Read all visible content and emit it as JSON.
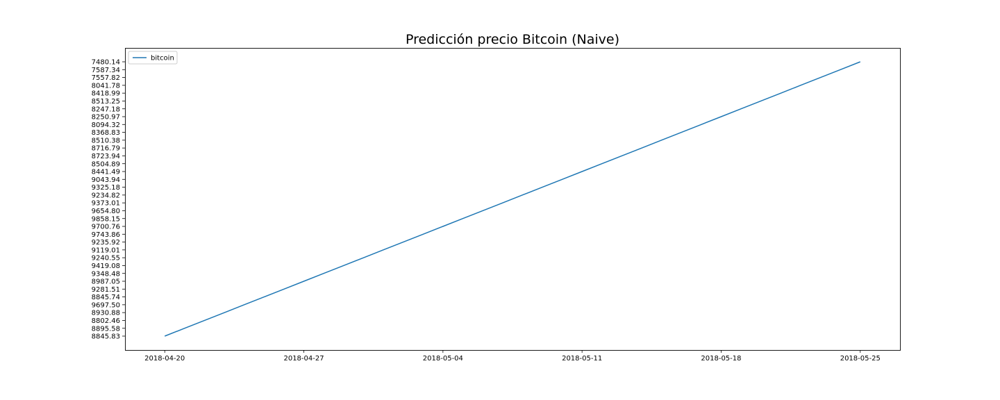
{
  "chart_data": {
    "type": "line",
    "title": "Predicción precio Bitcoin (Naive)",
    "xlabel": "",
    "ylabel": "",
    "grid": false,
    "legend_placement": "top-left",
    "x_ticks": [
      "2018-04-20",
      "2018-04-27",
      "2018-05-04",
      "2018-05-11",
      "2018-05-18",
      "2018-05-25"
    ],
    "xlim": [
      "2018-04-18",
      "2018-05-27"
    ],
    "y_categories": [
      "8845.83",
      "8895.58",
      "8802.46",
      "8930.88",
      "9697.50",
      "8845.74",
      "9281.51",
      "8987.05",
      "9348.48",
      "9419.08",
      "9240.55",
      "9119.01",
      "9235.92",
      "9743.86",
      "9700.76",
      "9858.15",
      "9654.80",
      "9373.01",
      "9234.82",
      "9325.18",
      "9043.94",
      "8441.49",
      "8504.89",
      "8723.94",
      "8716.79",
      "8510.38",
      "8368.83",
      "8094.32",
      "8250.97",
      "8247.18",
      "8513.25",
      "8418.99",
      "8041.78",
      "7557.82",
      "7587.34",
      "7480.14"
    ],
    "series": [
      {
        "name": "bitcoin",
        "color": "#1f77b4",
        "x": [
          "2018-04-20",
          "2018-04-21",
          "2018-04-22",
          "2018-04-23",
          "2018-04-24",
          "2018-04-25",
          "2018-04-26",
          "2018-04-27",
          "2018-04-28",
          "2018-04-29",
          "2018-04-30",
          "2018-05-01",
          "2018-05-02",
          "2018-05-03",
          "2018-05-04",
          "2018-05-05",
          "2018-05-06",
          "2018-05-07",
          "2018-05-08",
          "2018-05-09",
          "2018-05-10",
          "2018-05-11",
          "2018-05-12",
          "2018-05-13",
          "2018-05-14",
          "2018-05-15",
          "2018-05-16",
          "2018-05-17",
          "2018-05-18",
          "2018-05-19",
          "2018-05-20",
          "2018-05-21",
          "2018-05-22",
          "2018-05-23",
          "2018-05-24",
          "2018-05-25"
        ],
        "values": [
          "8845.83",
          "8895.58",
          "8802.46",
          "8930.88",
          "9697.50",
          "8845.74",
          "9281.51",
          "8987.05",
          "9348.48",
          "9419.08",
          "9240.55",
          "9119.01",
          "9235.92",
          "9743.86",
          "9700.76",
          "9858.15",
          "9654.80",
          "9373.01",
          "9234.82",
          "9325.18",
          "9043.94",
          "8441.49",
          "8504.89",
          "8723.94",
          "8716.79",
          "8510.38",
          "8368.83",
          "8094.32",
          "8250.97",
          "8247.18",
          "8513.25",
          "8418.99",
          "8041.78",
          "7557.82",
          "7587.34",
          "7480.14"
        ]
      }
    ]
  }
}
